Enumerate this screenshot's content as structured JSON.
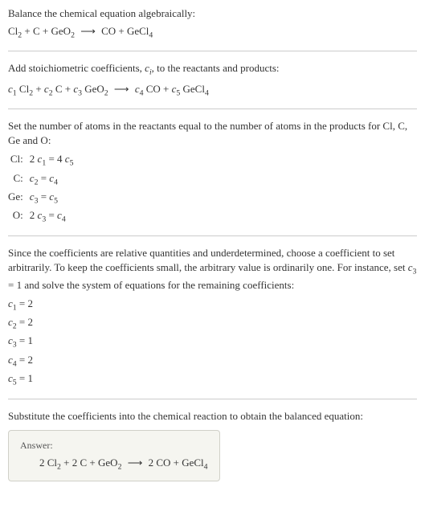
{
  "section1": {
    "intro": "Balance the chemical equation algebraically:",
    "equation_html": "Cl<sub>2</sub> + C + GeO<sub>2</sub> <span class='arrow'>⟶</span> CO + GeCl<sub>4</sub>"
  },
  "section2": {
    "intro_html": "Add stoichiometric coefficients, <span class='italic'>c<sub>i</sub></span>, to the reactants and products:",
    "equation_html": "<span class='italic'>c</span><sub>1</sub> Cl<sub>2</sub> + <span class='italic'>c</span><sub>2</sub> C + <span class='italic'>c</span><sub>3</sub> GeO<sub>2</sub> <span class='arrow'>⟶</span> <span class='italic'>c</span><sub>4</sub> CO + <span class='italic'>c</span><sub>5</sub> GeCl<sub>4</sub>"
  },
  "section3": {
    "intro": "Set the number of atoms in the reactants equal to the number of atoms in the products for Cl, C, Ge and O:",
    "atoms": [
      {
        "label": "Cl:",
        "eq_html": "2 <span class='italic'>c</span><sub>1</sub> = 4 <span class='italic'>c</span><sub>5</sub>"
      },
      {
        "label": "C:",
        "eq_html": "<span class='italic'>c</span><sub>2</sub> = <span class='italic'>c</span><sub>4</sub>"
      },
      {
        "label": "Ge:",
        "eq_html": "<span class='italic'>c</span><sub>3</sub> = <span class='italic'>c</span><sub>5</sub>"
      },
      {
        "label": "O:",
        "eq_html": "2 <span class='italic'>c</span><sub>3</sub> = <span class='italic'>c</span><sub>4</sub>"
      }
    ]
  },
  "section4": {
    "intro_html": "Since the coefficients are relative quantities and underdetermined, choose a coefficient to set arbitrarily. To keep the coefficients small, the arbitrary value is ordinarily one. For instance, set <span class='italic'>c</span><sub>3</sub> = 1 and solve the system of equations for the remaining coefficients:",
    "coefs": [
      {
        "html": "<span class='italic'>c</span><sub>1</sub> = 2"
      },
      {
        "html": "<span class='italic'>c</span><sub>2</sub> = 2"
      },
      {
        "html": "<span class='italic'>c</span><sub>3</sub> = 1"
      },
      {
        "html": "<span class='italic'>c</span><sub>4</sub> = 2"
      },
      {
        "html": "<span class='italic'>c</span><sub>5</sub> = 1"
      }
    ]
  },
  "section5": {
    "intro": "Substitute the coefficients into the chemical reaction to obtain the balanced equation:",
    "answer_label": "Answer:",
    "answer_html": "2 Cl<sub>2</sub> + 2 C + GeO<sub>2</sub> <span class='arrow'>⟶</span> 2 CO + GeCl<sub>4</sub>"
  },
  "colors": {
    "text": "#333333",
    "border": "#cccccc",
    "answer_bg": "#f5f5f0",
    "answer_border": "#d0d0c8",
    "answer_label": "#555555"
  }
}
